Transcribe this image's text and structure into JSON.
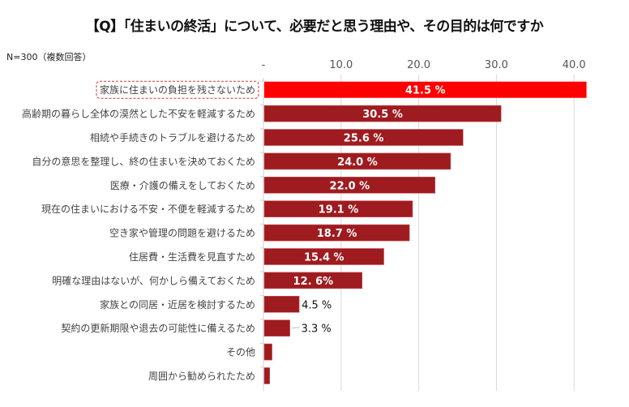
{
  "chart_data": {
    "type": "bar",
    "orientation": "horizontal",
    "title": "【Q】「住まいの終活」について、必要だと思う理由や、その目的は何ですか",
    "note": "N=300（複数回答）",
    "xlabel": "",
    "ylabel": "",
    "xlim": [
      0,
      40
    ],
    "x_ticks": [
      "-",
      "10.0",
      "20.0",
      "30.0",
      "40.0"
    ],
    "x_tick_values": [
      0,
      10,
      20,
      30,
      40
    ],
    "grid": true,
    "unit_suffix": " %",
    "categories": [
      "家族に住まいの負担を残さないため",
      "高齢期の暮らし全体の漠然とした不安を軽減するため",
      "相続や手続きのトラブルを避けるため",
      "自分の意思を整理し、終の住まいを決めておくため",
      "医療・介護の備えをしておくため",
      "現在の住まいにおける不安・不便を軽減するため",
      "空き家や管理の問題を避けるため",
      "住居費・生活費を見直すため",
      "明確な理由はないが、何かしら備えておくため",
      "家族との同居・近居を検討するため",
      "契約の更新期限や退去の可能性に備えるため",
      "その他",
      "周囲から勧められたため"
    ],
    "values": [
      41.5,
      30.5,
      25.6,
      24.0,
      22.0,
      19.1,
      18.7,
      15.4,
      12.6,
      4.5,
      3.3,
      1.0,
      0.7
    ],
    "data_labels": [
      "41.5 %",
      "30.5 %",
      "25.6 %",
      "24.0 %",
      "22.0 %",
      "19.1 %",
      "18.7 %",
      "15.4 %",
      "12. 6%",
      "4.5 %",
      "3.3 %",
      null,
      null
    ],
    "highlight_index": 0,
    "colors": {
      "highlight": "#ff0000",
      "bar": "#9e1b1f",
      "grid": "#d9d9d9",
      "highlight_border": "#e03030"
    }
  }
}
